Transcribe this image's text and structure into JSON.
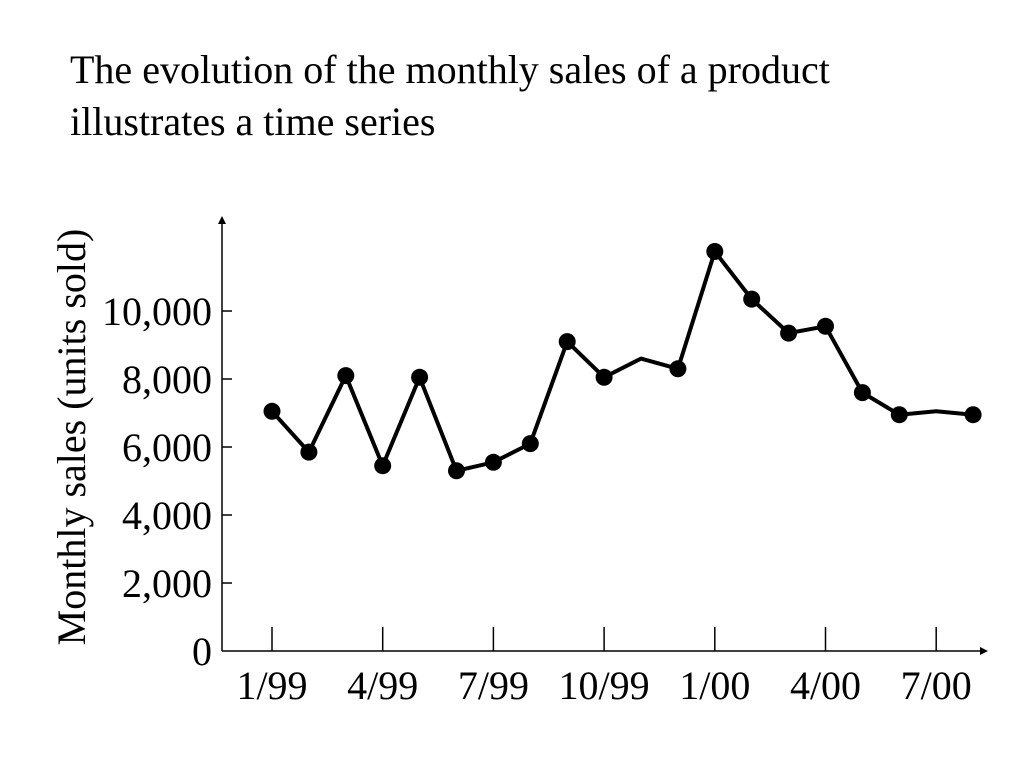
{
  "title": {
    "line1": "The evolution of the monthly sales of a product",
    "line2": "illustrates a time series"
  },
  "colors": {
    "line": "#000000",
    "background": "#ffffff"
  },
  "chart_data": {
    "type": "line",
    "title": "The evolution of the monthly sales of a product illustrates a time series",
    "xlabel": "",
    "ylabel": "Monthly sales (units sold)",
    "ylim": [
      0,
      12500
    ],
    "y_ticks": [
      0,
      2000,
      4000,
      6000,
      8000,
      10000
    ],
    "y_tick_labels": [
      "0",
      "2,000",
      "4,000",
      "6,000",
      "8,000",
      "10,000"
    ],
    "x_ticks": [
      "1/99",
      "4/99",
      "7/99",
      "10/99",
      "1/00",
      "4/00",
      "7/00"
    ],
    "x_tick_labels": [
      "1/99",
      "4/99",
      "7/99",
      "10/99",
      "1/00",
      "4/00",
      "7/00"
    ],
    "grid": false,
    "legend": "none",
    "series": [
      {
        "x": [
          "1999-01",
          "1999-02",
          "1999-03",
          "1999-04",
          "1999-05",
          "1999-06",
          "1999-07",
          "1999-08",
          "1999-09",
          "1999-10",
          "1999-11",
          "1999-12",
          "2000-01",
          "2000-02",
          "2000-03",
          "2000-04",
          "2000-05",
          "2000-06",
          "2000-07",
          "2000-08"
        ],
        "values": [
          7050,
          5850,
          8100,
          5450,
          8050,
          5300,
          5550,
          6100,
          9100,
          8050,
          8600,
          8300,
          11750,
          10350,
          9350,
          9550,
          7600,
          6950,
          7050,
          6950
        ],
        "markers": [
          true,
          true,
          true,
          true,
          true,
          true,
          true,
          true,
          true,
          true,
          false,
          true,
          true,
          true,
          true,
          true,
          true,
          true,
          false,
          true
        ]
      }
    ]
  }
}
